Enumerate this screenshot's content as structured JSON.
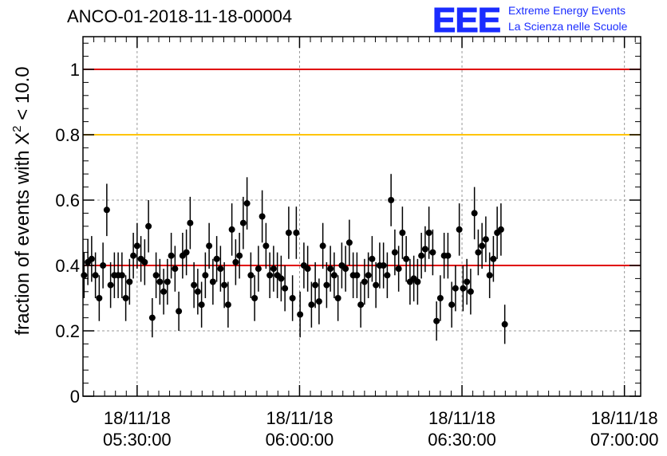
{
  "title": "ANCO-01-2018-11-18-00004",
  "logo": {
    "letters": "EEE",
    "line1": "Extreme Energy Events",
    "line2": "La Scienza nelle Scuole"
  },
  "chart_data": {
    "type": "scatter",
    "ylabel_text": "fraction of events with X",
    "ylabel_sup": "2",
    "ylabel_tail": " < 10.0",
    "ylim": [
      0,
      1.1
    ],
    "yticks": [
      0,
      0.2,
      0.4,
      0.6,
      0.8,
      1
    ],
    "ytick_labels": [
      "0",
      "0.2",
      "0.4",
      "0.6",
      "0.8",
      "1"
    ],
    "xlim_minutes": [
      320,
      423
    ],
    "xticks": [
      {
        "minute": 330,
        "date": "18/11/18",
        "time": "05:30:00"
      },
      {
        "minute": 360,
        "date": "18/11/18",
        "time": "06:00:00"
      },
      {
        "minute": 390,
        "date": "18/11/18",
        "time": "06:30:00"
      },
      {
        "minute": 420,
        "date": "18/11/18",
        "time": "07:00:00"
      }
    ],
    "reference_lines": [
      {
        "y": 1.0,
        "color": "#e00000"
      },
      {
        "y": 0.8,
        "color": "#ffc400"
      },
      {
        "y": 0.4,
        "color": "#e00000"
      }
    ],
    "grid": true,
    "marker_color": "#000000",
    "points": [
      [
        320.2,
        0.37,
        0.07
      ],
      [
        320.9,
        0.41,
        0.07
      ],
      [
        321.6,
        0.42,
        0.07
      ],
      [
        322.3,
        0.37,
        0.07
      ],
      [
        323.0,
        0.3,
        0.07
      ],
      [
        323.7,
        0.4,
        0.07
      ],
      [
        324.4,
        0.57,
        0.08
      ],
      [
        325.1,
        0.34,
        0.07
      ],
      [
        325.8,
        0.37,
        0.07
      ],
      [
        326.5,
        0.37,
        0.07
      ],
      [
        327.2,
        0.37,
        0.07
      ],
      [
        327.9,
        0.3,
        0.07
      ],
      [
        328.6,
        0.35,
        0.07
      ],
      [
        329.3,
        0.43,
        0.07
      ],
      [
        330.0,
        0.46,
        0.07
      ],
      [
        330.7,
        0.42,
        0.07
      ],
      [
        331.4,
        0.41,
        0.07
      ],
      [
        332.1,
        0.52,
        0.08
      ],
      [
        332.8,
        0.24,
        0.06
      ],
      [
        333.5,
        0.37,
        0.07
      ],
      [
        334.2,
        0.35,
        0.07
      ],
      [
        334.9,
        0.32,
        0.07
      ],
      [
        335.6,
        0.35,
        0.07
      ],
      [
        336.3,
        0.43,
        0.07
      ],
      [
        337.0,
        0.39,
        0.07
      ],
      [
        337.7,
        0.26,
        0.06
      ],
      [
        338.4,
        0.43,
        0.07
      ],
      [
        339.1,
        0.44,
        0.07
      ],
      [
        339.8,
        0.53,
        0.08
      ],
      [
        340.5,
        0.34,
        0.07
      ],
      [
        341.2,
        0.32,
        0.07
      ],
      [
        341.9,
        0.28,
        0.07
      ],
      [
        342.6,
        0.37,
        0.07
      ],
      [
        343.3,
        0.46,
        0.07
      ],
      [
        344.0,
        0.35,
        0.07
      ],
      [
        344.7,
        0.42,
        0.07
      ],
      [
        345.4,
        0.39,
        0.07
      ],
      [
        346.1,
        0.34,
        0.07
      ],
      [
        346.8,
        0.28,
        0.07
      ],
      [
        347.5,
        0.51,
        0.08
      ],
      [
        348.2,
        0.41,
        0.07
      ],
      [
        348.9,
        0.43,
        0.07
      ],
      [
        349.6,
        0.53,
        0.08
      ],
      [
        350.3,
        0.59,
        0.08
      ],
      [
        351.0,
        0.37,
        0.07
      ],
      [
        351.7,
        0.3,
        0.07
      ],
      [
        352.4,
        0.39,
        0.07
      ],
      [
        353.1,
        0.55,
        0.08
      ],
      [
        353.8,
        0.46,
        0.07
      ],
      [
        354.5,
        0.37,
        0.07
      ],
      [
        355.2,
        0.39,
        0.07
      ],
      [
        355.9,
        0.37,
        0.07
      ],
      [
        356.6,
        0.36,
        0.07
      ],
      [
        357.3,
        0.33,
        0.07
      ],
      [
        358.0,
        0.5,
        0.08
      ],
      [
        358.7,
        0.3,
        0.07
      ],
      [
        359.4,
        0.5,
        0.08
      ],
      [
        360.1,
        0.25,
        0.07
      ],
      [
        360.8,
        0.4,
        0.07
      ],
      [
        361.5,
        0.39,
        0.07
      ],
      [
        362.2,
        0.28,
        0.07
      ],
      [
        362.9,
        0.34,
        0.07
      ],
      [
        363.6,
        0.29,
        0.07
      ],
      [
        364.3,
        0.46,
        0.07
      ],
      [
        365.0,
        0.34,
        0.07
      ],
      [
        365.7,
        0.39,
        0.07
      ],
      [
        366.4,
        0.37,
        0.07
      ],
      [
        367.1,
        0.3,
        0.07
      ],
      [
        367.8,
        0.4,
        0.07
      ],
      [
        368.5,
        0.39,
        0.07
      ],
      [
        369.2,
        0.47,
        0.07
      ],
      [
        369.9,
        0.37,
        0.07
      ],
      [
        370.6,
        0.37,
        0.07
      ],
      [
        371.3,
        0.28,
        0.07
      ],
      [
        372.0,
        0.35,
        0.07
      ],
      [
        372.7,
        0.37,
        0.07
      ],
      [
        373.4,
        0.42,
        0.07
      ],
      [
        374.1,
        0.34,
        0.07
      ],
      [
        374.8,
        0.4,
        0.07
      ],
      [
        375.5,
        0.4,
        0.07
      ],
      [
        376.2,
        0.37,
        0.07
      ],
      [
        376.9,
        0.6,
        0.08
      ],
      [
        377.6,
        0.44,
        0.07
      ],
      [
        378.3,
        0.39,
        0.07
      ],
      [
        379.0,
        0.5,
        0.08
      ],
      [
        379.7,
        0.42,
        0.07
      ],
      [
        380.4,
        0.35,
        0.07
      ],
      [
        381.1,
        0.36,
        0.07
      ],
      [
        381.8,
        0.35,
        0.07
      ],
      [
        382.5,
        0.43,
        0.07
      ],
      [
        383.2,
        0.45,
        0.07
      ],
      [
        383.9,
        0.5,
        0.08
      ],
      [
        384.6,
        0.44,
        0.07
      ],
      [
        385.3,
        0.23,
        0.06
      ],
      [
        386.0,
        0.3,
        0.07
      ],
      [
        386.7,
        0.43,
        0.07
      ],
      [
        387.4,
        0.43,
        0.07
      ],
      [
        388.1,
        0.28,
        0.07
      ],
      [
        388.8,
        0.33,
        0.07
      ],
      [
        389.5,
        0.51,
        0.08
      ],
      [
        390.2,
        0.33,
        0.07
      ],
      [
        390.9,
        0.35,
        0.07
      ],
      [
        391.6,
        0.32,
        0.07
      ],
      [
        392.3,
        0.56,
        0.08
      ],
      [
        393.0,
        0.44,
        0.07
      ],
      [
        393.7,
        0.46,
        0.07
      ],
      [
        394.4,
        0.48,
        0.07
      ],
      [
        395.1,
        0.37,
        0.07
      ],
      [
        395.8,
        0.42,
        0.07
      ],
      [
        396.5,
        0.5,
        0.08
      ],
      [
        397.2,
        0.51,
        0.08
      ],
      [
        397.9,
        0.22,
        0.06
      ]
    ]
  }
}
